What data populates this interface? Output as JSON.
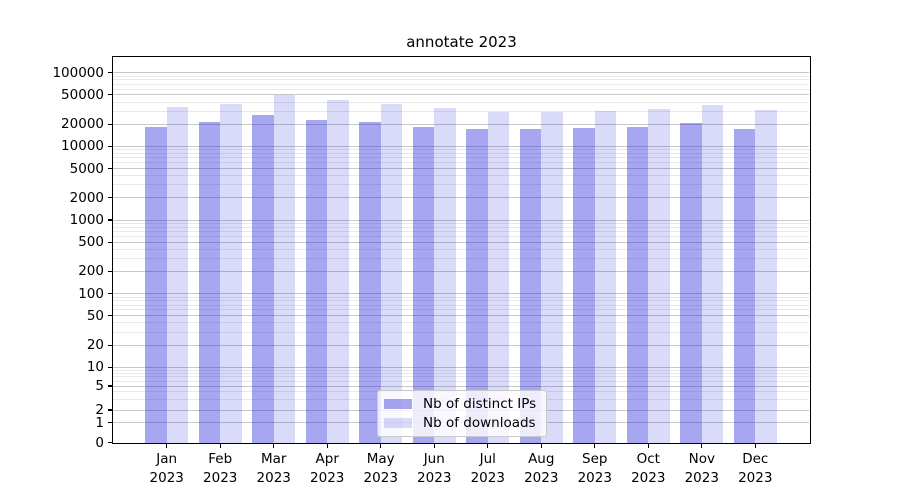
{
  "chart_data": {
    "type": "bar",
    "title": "annotate 2023",
    "xlabel": "",
    "ylabel": "",
    "yscale": "symlog",
    "grid": "both",
    "legend_position": "lower center (inside plot)",
    "categories": [
      "Jan",
      "Feb",
      "Mar",
      "Apr",
      "May",
      "Jun",
      "Jul",
      "Aug",
      "Sep",
      "Oct",
      "Nov",
      "Dec"
    ],
    "x_year": "2023",
    "series": [
      {
        "name": "Nb of distinct IPs",
        "color": "rgba(34,34,221,0.40)",
        "values": [
          18100,
          21200,
          26600,
          23000,
          21200,
          18500,
          17000,
          17100,
          17800,
          18500,
          21000,
          17100
        ]
      },
      {
        "name": "Nb of downloads",
        "color": "rgba(34,34,221,0.17)",
        "values": [
          34500,
          37500,
          49500,
          42500,
          37500,
          33500,
          29000,
          29500,
          30500,
          32500,
          36500,
          31000
        ]
      }
    ],
    "y_ticks": [
      0,
      1,
      2,
      5,
      10,
      20,
      50,
      100,
      200,
      500,
      1000,
      2000,
      5000,
      10000,
      20000,
      50000,
      100000
    ],
    "ylim": [
      0,
      160000
    ]
  },
  "legend": {
    "items": [
      {
        "label": "Nb of distinct IPs"
      },
      {
        "label": "Nb of downloads"
      }
    ]
  }
}
